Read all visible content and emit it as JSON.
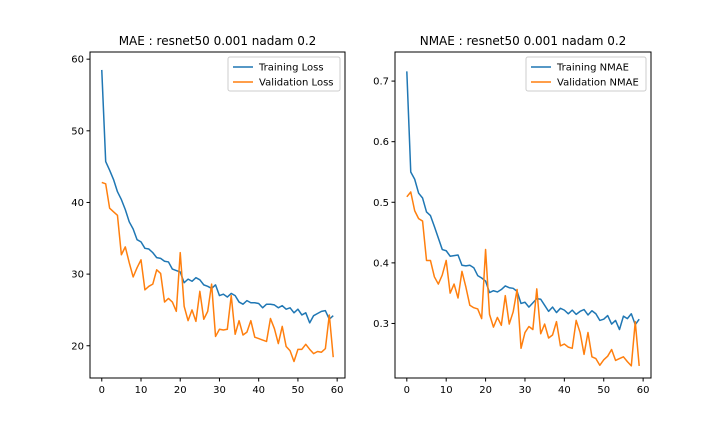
{
  "figure": {
    "background": "#ffffff"
  },
  "chart_data": [
    {
      "type": "line",
      "title": "MAE : resnet50 0.001 nadam 0.2",
      "xlabel": "",
      "ylabel": "",
      "xlim": [
        -3,
        62
      ],
      "ylim": [
        15.5,
        61
      ],
      "xticks": [
        0,
        10,
        20,
        30,
        40,
        50,
        60
      ],
      "yticks": [
        20,
        30,
        40,
        50,
        60
      ],
      "grid": false,
      "legend_position": "top-right",
      "x": [
        0,
        1,
        2,
        3,
        4,
        5,
        6,
        7,
        8,
        9,
        10,
        11,
        12,
        13,
        14,
        15,
        16,
        17,
        18,
        19,
        20,
        21,
        22,
        23,
        24,
        25,
        26,
        27,
        28,
        29,
        30,
        31,
        32,
        33,
        34,
        35,
        36,
        37,
        38,
        39,
        40,
        41,
        42,
        43,
        44,
        45,
        46,
        47,
        48,
        49,
        50,
        51,
        52,
        53,
        54,
        55,
        56,
        57,
        58,
        59
      ],
      "series": [
        {
          "name": "Training Loss",
          "color": "#1f77b4",
          "values": [
            58.5,
            45.7,
            44.5,
            43.2,
            41.5,
            40.4,
            39.0,
            37.3,
            36.3,
            34.8,
            34.5,
            33.6,
            33.5,
            33.0,
            32.3,
            32.2,
            31.8,
            31.7,
            30.7,
            30.5,
            30.3,
            28.8,
            29.3,
            29.0,
            29.5,
            29.2,
            28.5,
            28.3,
            28.0,
            28.5,
            27.0,
            27.2,
            26.8,
            27.3,
            27.0,
            26.1,
            25.8,
            26.3,
            26.0,
            26.0,
            25.9,
            25.3,
            25.8,
            25.8,
            25.7,
            25.3,
            25.6,
            25.1,
            25.3,
            24.6,
            25.1,
            24.3,
            24.6,
            23.2,
            24.2,
            24.5,
            24.8,
            24.9,
            23.7,
            24.2
          ]
        },
        {
          "name": "Validation Loss",
          "color": "#ff7f0e",
          "values": [
            42.8,
            42.6,
            39.2,
            38.7,
            38.2,
            32.7,
            33.8,
            31.6,
            29.6,
            30.9,
            32.0,
            27.8,
            28.3,
            28.6,
            30.6,
            30.1,
            26.1,
            26.6,
            26.1,
            24.8,
            33.0,
            25.5,
            23.5,
            25.0,
            23.4,
            27.6,
            23.7,
            24.8,
            28.6,
            21.3,
            22.3,
            22.2,
            22.3,
            27.0,
            21.6,
            23.5,
            21.5,
            21.9,
            23.5,
            21.2,
            21.0,
            20.8,
            20.6,
            23.8,
            22.4,
            20.3,
            22.7,
            19.9,
            19.3,
            17.8,
            19.5,
            19.5,
            20.2,
            19.5,
            18.9,
            19.2,
            19.1,
            19.6,
            24.3,
            18.4
          ]
        }
      ]
    },
    {
      "type": "line",
      "title": "NMAE : resnet50 0.001 nadam 0.2",
      "xlabel": "",
      "ylabel": "",
      "xlim": [
        -3,
        62
      ],
      "ylim": [
        0.21,
        0.748
      ],
      "xticks": [
        0,
        10,
        20,
        30,
        40,
        50,
        60
      ],
      "yticks": [
        0.3,
        0.4,
        0.5,
        0.6,
        0.7
      ],
      "grid": false,
      "legend_position": "top-right",
      "x": [
        0,
        1,
        2,
        3,
        4,
        5,
        6,
        7,
        8,
        9,
        10,
        11,
        12,
        13,
        14,
        15,
        16,
        17,
        18,
        19,
        20,
        21,
        22,
        23,
        24,
        25,
        26,
        27,
        28,
        29,
        30,
        31,
        32,
        33,
        34,
        35,
        36,
        37,
        38,
        39,
        40,
        41,
        42,
        43,
        44,
        45,
        46,
        47,
        48,
        49,
        50,
        51,
        52,
        53,
        54,
        55,
        56,
        57,
        58,
        59
      ],
      "series": [
        {
          "name": "Training NMAE",
          "color": "#1f77b4",
          "values": [
            0.716,
            0.55,
            0.538,
            0.515,
            0.507,
            0.484,
            0.478,
            0.46,
            0.441,
            0.422,
            0.42,
            0.411,
            0.412,
            0.413,
            0.396,
            0.395,
            0.396,
            0.392,
            0.379,
            0.375,
            0.37,
            0.351,
            0.354,
            0.352,
            0.356,
            0.362,
            0.359,
            0.358,
            0.353,
            0.333,
            0.335,
            0.327,
            0.334,
            0.341,
            0.34,
            0.33,
            0.32,
            0.327,
            0.318,
            0.325,
            0.322,
            0.316,
            0.322,
            0.315,
            0.32,
            0.323,
            0.314,
            0.321,
            0.316,
            0.305,
            0.307,
            0.313,
            0.299,
            0.305,
            0.29,
            0.312,
            0.308,
            0.316,
            0.298,
            0.307
          ]
        },
        {
          "name": "Validation NMAE",
          "color": "#ff7f0e",
          "values": [
            0.509,
            0.517,
            0.486,
            0.473,
            0.469,
            0.404,
            0.404,
            0.377,
            0.365,
            0.38,
            0.404,
            0.35,
            0.365,
            0.342,
            0.386,
            0.36,
            0.33,
            0.326,
            0.324,
            0.308,
            0.422,
            0.315,
            0.294,
            0.31,
            0.297,
            0.346,
            0.299,
            0.319,
            0.356,
            0.259,
            0.285,
            0.295,
            0.29,
            0.357,
            0.283,
            0.299,
            0.276,
            0.281,
            0.303,
            0.263,
            0.266,
            0.261,
            0.259,
            0.305,
            0.285,
            0.249,
            0.285,
            0.245,
            0.242,
            0.231,
            0.24,
            0.246,
            0.257,
            0.239,
            0.242,
            0.245,
            0.237,
            0.23,
            0.303,
            0.23
          ]
        }
      ]
    }
  ]
}
